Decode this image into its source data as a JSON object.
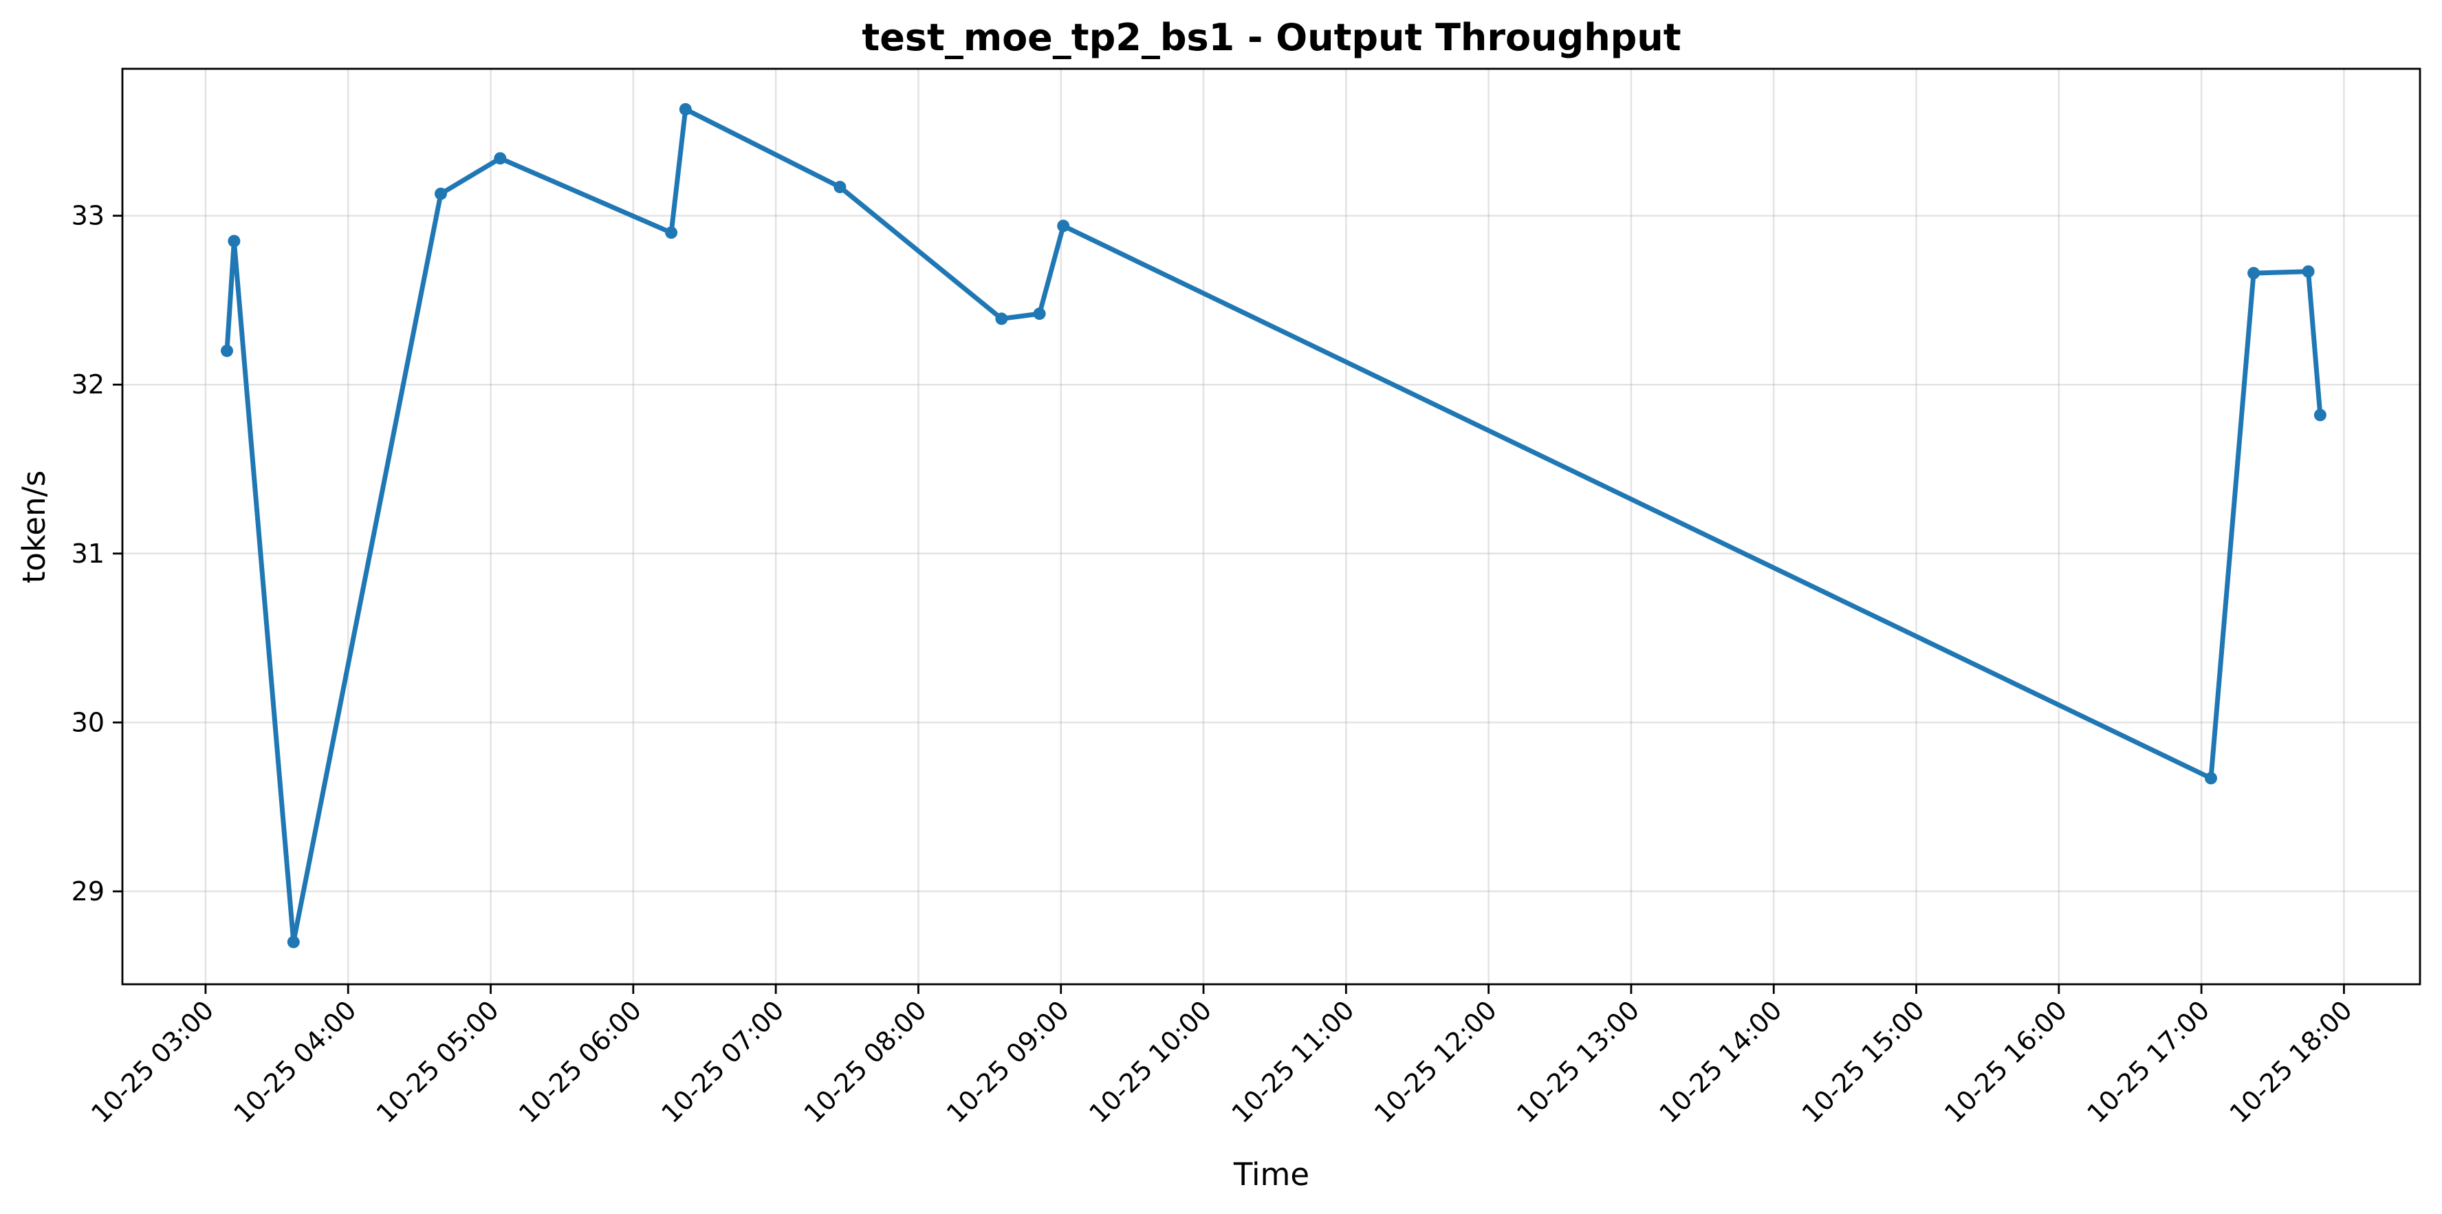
{
  "chart_data": {
    "type": "line",
    "title": "test_moe_tp2_bs1 - Output Throughput",
    "xlabel": "Time",
    "ylabel": "token/s",
    "x_ticks": [
      "10-25 03:00",
      "10-25 04:00",
      "10-25 05:00",
      "10-25 06:00",
      "10-25 07:00",
      "10-25 08:00",
      "10-25 09:00",
      "10-25 10:00",
      "10-25 11:00",
      "10-25 12:00",
      "10-25 13:00",
      "10-25 14:00",
      "10-25 15:00",
      "10-25 16:00",
      "10-25 17:00",
      "10-25 18:00"
    ],
    "y_ticks": [
      "29",
      "30",
      "31",
      "32",
      "33"
    ],
    "xlim": [
      "10-25 02:25",
      "10-25 18:32"
    ],
    "ylim": [
      28.45,
      33.87
    ],
    "grid": true,
    "series": [
      {
        "color": "#1f77b4",
        "x": [
          "10-25 03:09",
          "10-25 03:12",
          "10-25 03:37",
          "10-25 04:39",
          "10-25 05:04",
          "10-25 06:16",
          "10-25 06:22",
          "10-25 07:27",
          "10-25 08:35",
          "10-25 08:51",
          "10-25 09:01",
          "10-25 17:04",
          "10-25 17:22",
          "10-25 17:45",
          "10-25 17:50"
        ],
        "y": [
          32.2,
          32.85,
          28.7,
          33.13,
          33.34,
          32.9,
          33.63,
          33.17,
          32.39,
          32.42,
          32.94,
          29.67,
          32.66,
          32.67,
          31.82
        ]
      }
    ]
  }
}
